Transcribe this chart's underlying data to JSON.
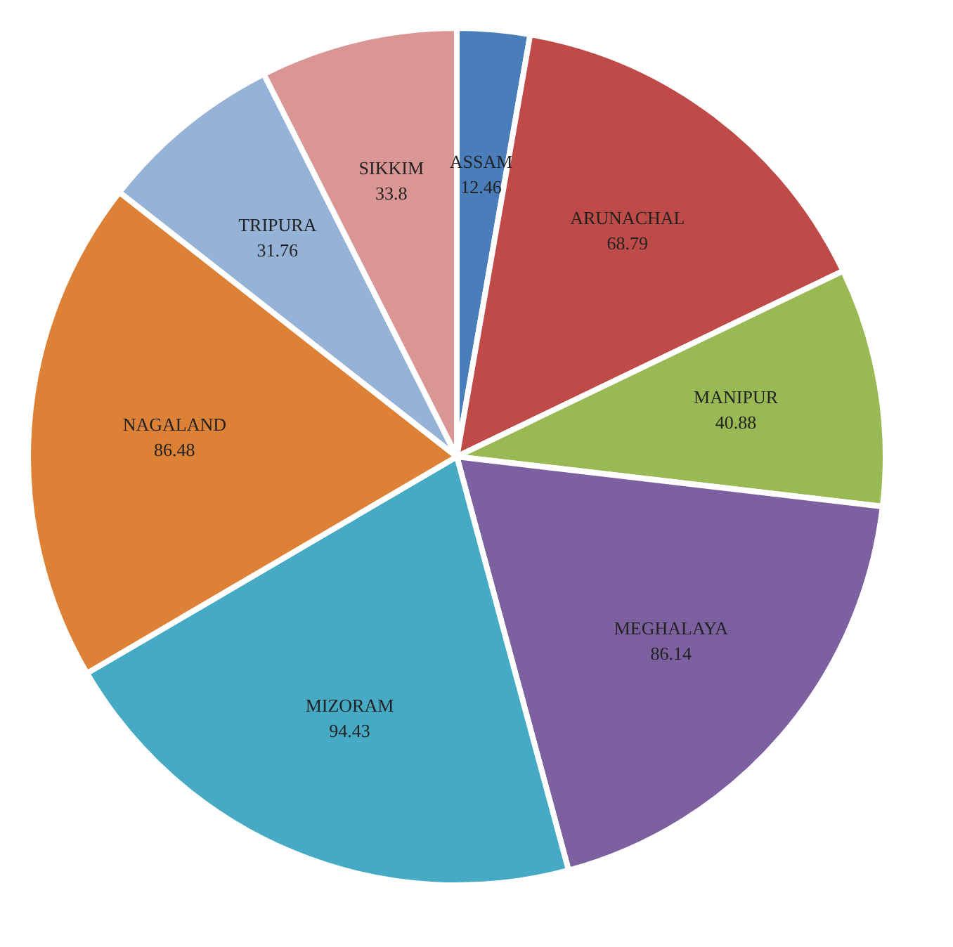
{
  "chart_data": {
    "type": "pie",
    "categories": [
      "ASSAM",
      "ARUNACHAL",
      "MANIPUR",
      "MEGHALAYA",
      "MIZORAM",
      "NAGALAND",
      "TRIPURA",
      "SIKKIM"
    ],
    "values": [
      12.46,
      68.79,
      40.88,
      86.14,
      94.43,
      86.48,
      31.76,
      33.8
    ],
    "colors": [
      "#4a7ebb",
      "#be4b48",
      "#98b954",
      "#7d60a0",
      "#46aac5",
      "#dd8136",
      "#95b3d7",
      "#d99694"
    ],
    "data_labels": true,
    "legend": false
  }
}
